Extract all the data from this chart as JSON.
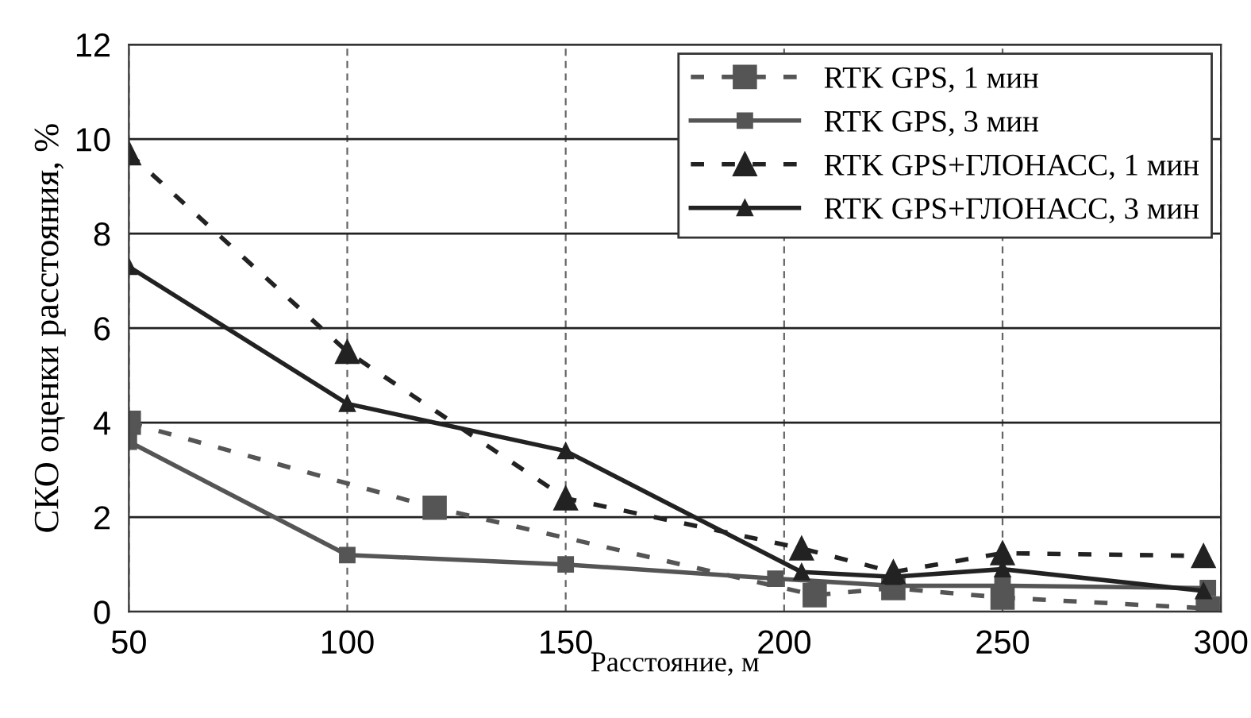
{
  "chart_data": {
    "type": "line",
    "xlabel": "Расстояние, м",
    "ylabel": "СКО оценки расстояния, %",
    "xlim": [
      50,
      300
    ],
    "xticks": [
      50,
      100,
      150,
      200,
      250,
      300
    ],
    "ylim": [
      0,
      12
    ],
    "yticks": [
      0,
      2,
      4,
      6,
      8,
      10,
      12
    ],
    "grid": true,
    "legend": "top right",
    "series": [
      {
        "name": "RTK GPS, 1 мин",
        "color": "#555555",
        "marker": "square",
        "line_style": "dashed",
        "x": [
          50,
          120,
          207,
          225,
          250,
          297
        ],
        "values": [
          4.0,
          2.2,
          0.35,
          0.5,
          0.3,
          0.07
        ]
      },
      {
        "name": "RTK GPS, 3 мин",
        "color": "#555555",
        "marker": "square",
        "line_style": "solid",
        "x": [
          50,
          100,
          150,
          198,
          225,
          250,
          297
        ],
        "values": [
          3.6,
          1.2,
          1.0,
          0.7,
          0.55,
          0.55,
          0.5
        ]
      },
      {
        "name": "RTK GPS+ГЛОНАСС, 1 мин",
        "color": "#222222",
        "marker": "triangle",
        "line_style": "dashed",
        "x": [
          50,
          100,
          150,
          204,
          225,
          250,
          296
        ],
        "values": [
          9.7,
          5.5,
          2.4,
          1.34,
          0.84,
          1.24,
          1.18
        ]
      },
      {
        "name": "RTK GPS+ГЛОНАСС, 3 мин",
        "color": "#222222",
        "marker": "triangle",
        "line_style": "solid",
        "x": [
          50,
          100,
          150,
          204,
          225,
          250,
          296
        ],
        "values": [
          7.3,
          4.4,
          3.4,
          0.84,
          0.74,
          0.9,
          0.44
        ]
      }
    ]
  }
}
